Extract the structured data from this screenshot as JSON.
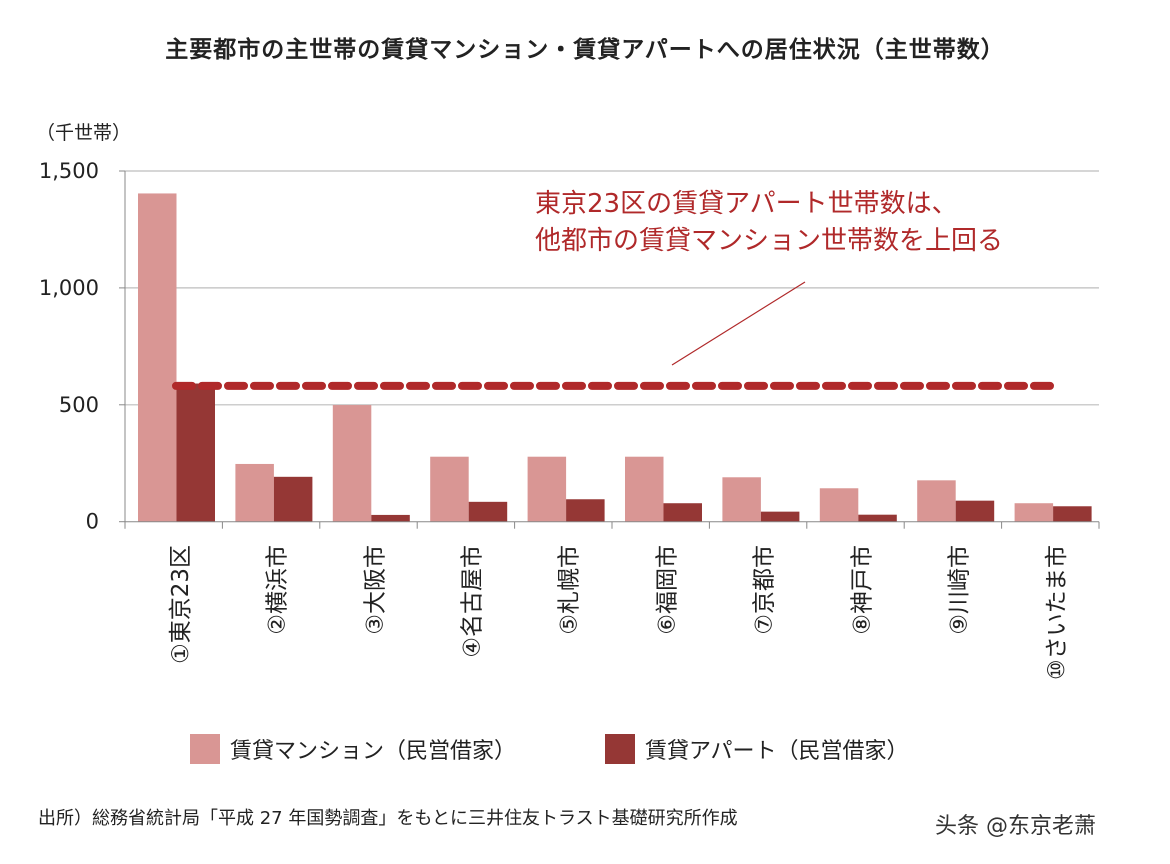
{
  "chart_data": {
    "type": "bar",
    "title": "主要都市の主世帯の賃貸マンション・賃貸アパートへの居住状況（主世帯数）",
    "ylabel": "（千世帯）",
    "ylim": [
      0,
      1500
    ],
    "yticks": [
      "0",
      "500",
      "1,000",
      "1,500"
    ],
    "ytick_values": [
      0,
      500,
      1000,
      1500
    ],
    "grid": true,
    "legend_position": "bottom",
    "categories": [
      "①東京23区",
      "②横浜市",
      "③大阪市",
      "④名古屋市",
      "⑤札幌市",
      "⑥福岡市",
      "⑦京都市",
      "⑧神戸市",
      "⑨川崎市",
      "⑩さいたま市"
    ],
    "series": [
      {
        "name": "賃貸マンション（民営借家）",
        "color": "#d99694",
        "values": [
          1404,
          247,
          499,
          278,
          278,
          278,
          190,
          143,
          177,
          79
        ]
      },
      {
        "name": "賃貸アパート（民営借家）",
        "color": "#953735",
        "values": [
          591,
          192,
          29,
          85,
          96,
          79,
          43,
          30,
          90,
          66
        ]
      }
    ],
    "reference_line": {
      "value": 581,
      "color": "#b0292a",
      "style": "dashed"
    },
    "annotation": [
      "東京23区の賃貸アパート世帯数は、",
      "他都市の賃貸マンション世帯数を上回る"
    ]
  },
  "source": "出所）総務省統計局「平成 27 年国勢調査」をもとに三井住友トラスト基礎研究所作成",
  "watermark": "头条 @东京老萧"
}
